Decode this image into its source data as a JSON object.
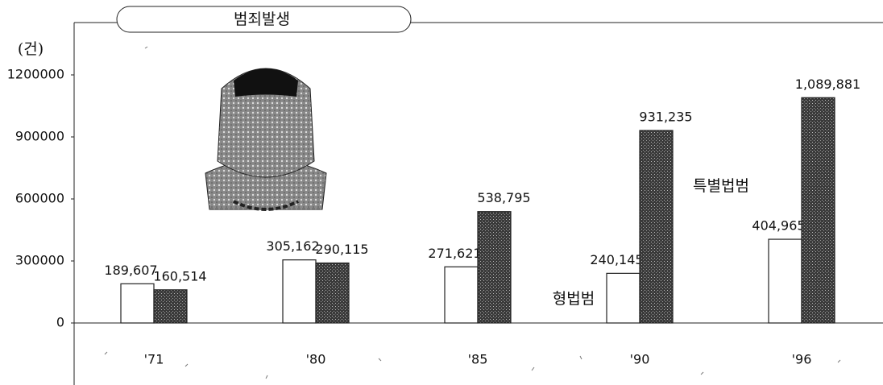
{
  "chart_data": {
    "type": "bar",
    "title": "범죄발생",
    "y_axis_label": "(건)",
    "categories": [
      "'71",
      "'80",
      "'85",
      "'90",
      "'96"
    ],
    "series": [
      {
        "name": "형법범",
        "color": "#ffffff",
        "values": [
          189607,
          305162,
          271621,
          240145,
          404965
        ],
        "value_labels": [
          "189,607",
          "305,162",
          "271,621",
          "240,145",
          "404,965"
        ]
      },
      {
        "name": "특별법범",
        "color": "#3a3a3a",
        "values": [
          160514,
          290115,
          538795,
          931235,
          1089881
        ],
        "value_labels": [
          "160,514",
          "290,115",
          "538,795",
          "931,235",
          "1,089,881"
        ]
      }
    ],
    "ylim": [
      0,
      1200000
    ],
    "yticks": [
      0,
      300000,
      600000,
      900000,
      1200000
    ]
  }
}
